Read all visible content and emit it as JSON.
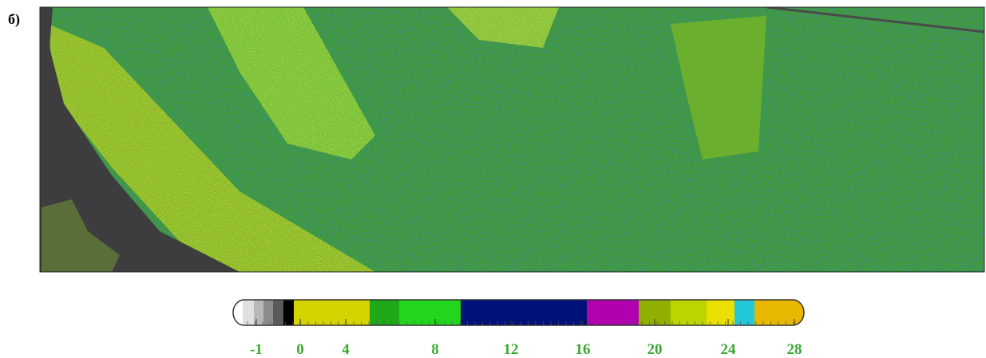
{
  "panel_label": "б)",
  "colorbar": {
    "ticks": [
      -1,
      0,
      4,
      8,
      12,
      16,
      20,
      24,
      28
    ]
  }
}
